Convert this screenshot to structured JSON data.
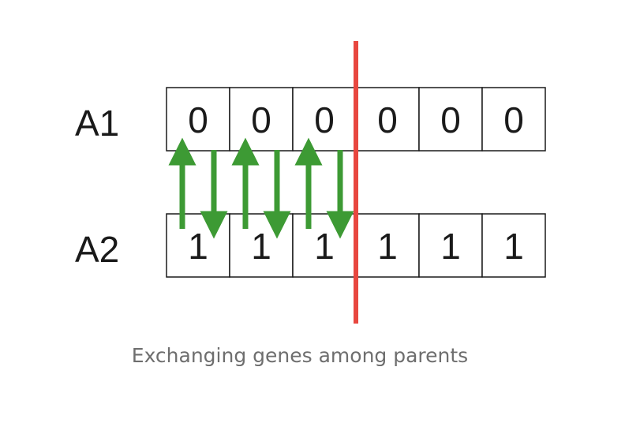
{
  "rows": [
    {
      "label": "A1",
      "genes": [
        "0",
        "0",
        "0",
        "0",
        "0",
        "0"
      ]
    },
    {
      "label": "A2",
      "genes": [
        "1",
        "1",
        "1",
        "1",
        "1",
        "1"
      ]
    }
  ],
  "crossover_after_gene": 3,
  "colors": {
    "arrow": "#3d9a34",
    "crossover_line": "#e8473f",
    "cell_border": "#1a1a1a",
    "caption_text": "#6e6e6e"
  },
  "caption": "Exchanging genes among parents"
}
